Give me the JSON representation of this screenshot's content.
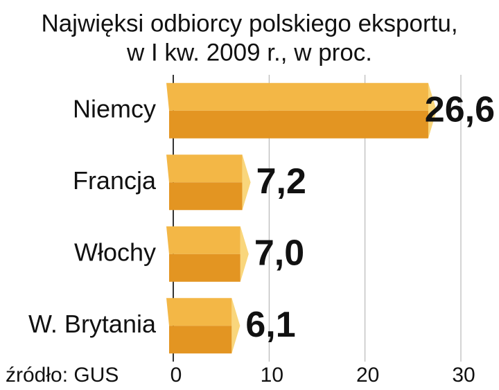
{
  "chart_data": {
    "type": "hbar",
    "title": [
      "Najwięksi odbiorcy polskiego eksportu,",
      "w I kw. 2009 r., w proc."
    ],
    "categories": [
      "Niemcy",
      "Francja",
      "Włochy",
      "W. Brytania"
    ],
    "values": [
      26.6,
      7.2,
      7.0,
      6.1
    ],
    "value_labels": [
      "26,6",
      "7,2",
      "7,0",
      "6,1"
    ],
    "colors": {
      "top": "#f3b746",
      "bottom": "#e39522",
      "tip": "#f9d67c"
    },
    "xlim": [
      0,
      30
    ],
    "xticks": [
      0,
      10,
      20,
      30
    ],
    "grid": true,
    "source": "źródło: GUS"
  }
}
